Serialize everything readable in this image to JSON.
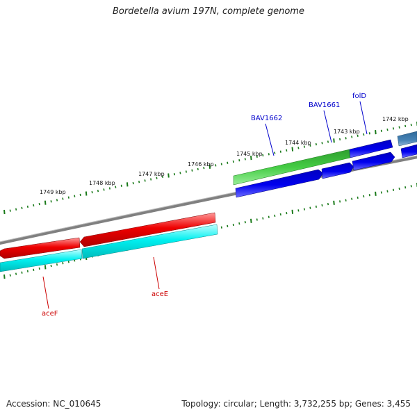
{
  "title": "Bordetella avium 197N, complete genome",
  "footer": {
    "accession": "Accession: NC_010645",
    "topology": "Topology: circular; Length: 3,732,255 bp; Genes: 3,455"
  },
  "colors": {
    "backbone": "#808080",
    "forward_cds": "#0000ee",
    "forward_gene": "#33cc33",
    "reverse_cds": "#ee0000",
    "reverse_gene": "#00f0f0",
    "other_feature": "#4682b4",
    "ticks": "#1a7a1a",
    "forward_label": "#0000cc",
    "reverse_label": "#cc0000"
  },
  "tick_labels": [
    "1749 kbp",
    "1748 kbp",
    "1747 kbp",
    "1746 kbp",
    "1745 kbp",
    "1744 kbp",
    "1743 kbp",
    "1742 kbp"
  ],
  "gene_labels": {
    "forward": [
      "BAV1662",
      "BAV1661",
      "folD"
    ],
    "reverse": [
      "aceF",
      "aceE"
    ]
  }
}
